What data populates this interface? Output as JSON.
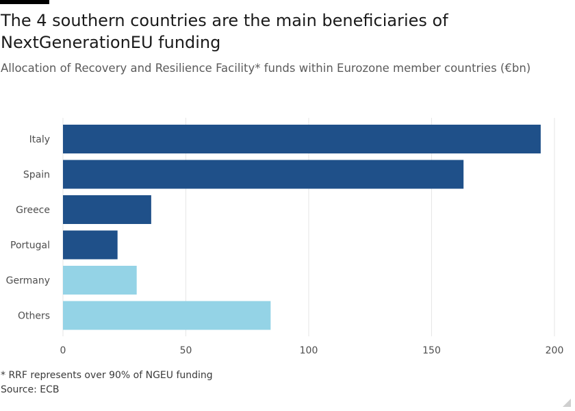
{
  "header": {
    "title": "The 4 southern countries are the main beneficiaries of NextGenerationEU funding",
    "subtitle": "Allocation of Recovery and Resilience Facility* funds within Eurozone member countries (€bn)"
  },
  "footer": {
    "footnote": "* RRF represents over 90% of NGEU funding",
    "source": "Source: ECB"
  },
  "colors": {
    "southern": "#1f5089",
    "other": "#94d3e6",
    "grid": "#e6e6e6",
    "axis_text": "#4d4d4d"
  },
  "chart_data": {
    "type": "bar",
    "orientation": "horizontal",
    "categories": [
      "Italy",
      "Spain",
      "Greece",
      "Portugal",
      "Germany",
      "Others"
    ],
    "values": [
      194.4,
      163.0,
      35.9,
      22.2,
      30.0,
      84.5
    ],
    "groups": [
      "southern",
      "southern",
      "southern",
      "southern",
      "other",
      "other"
    ],
    "xlim": [
      0,
      200
    ],
    "xticks": [
      0,
      50,
      100,
      150,
      200
    ],
    "grid": true,
    "legend": "none"
  }
}
